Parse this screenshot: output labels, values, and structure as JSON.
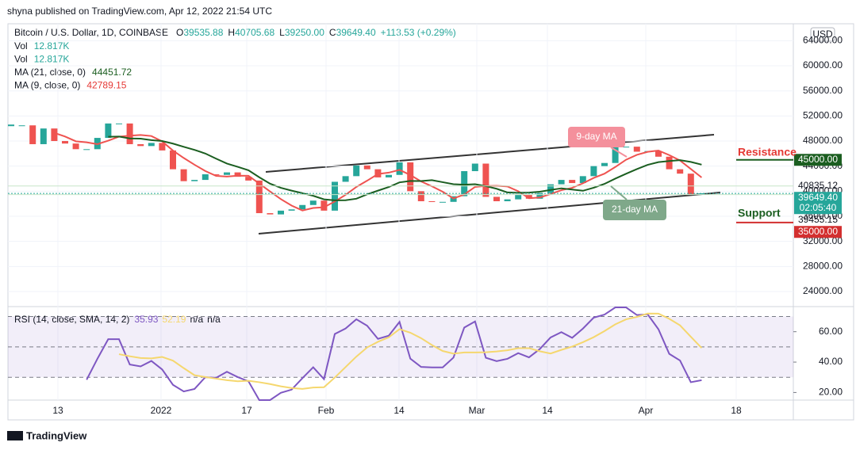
{
  "header": {
    "published": "shyna published on TradingView.com, Apr 12, 2022 21:54 UTC",
    "footer": "TradingView"
  },
  "chart_data": {
    "type": "candlestick",
    "title": "Bitcoin / U.S. Dollar, 1D, COINBASE",
    "ohlc": [
      {
        "key": "O",
        "text": "39535.88"
      },
      {
        "key": "H",
        "text": "40705.68"
      },
      {
        "key": "L",
        "text": "39250.00"
      },
      {
        "key": "C",
        "text": "39649.40"
      },
      {
        "key": "",
        "text": "+113.53 (+0.29%)"
      }
    ],
    "indicators": [
      {
        "key": "Vol",
        "text": "12.817K"
      },
      {
        "key": "Vol",
        "text": "12.817K"
      },
      {
        "key": "MA (21, close, 0)",
        "text": "44451.72"
      },
      {
        "key": "MA (9, close, 0)",
        "text": "42789.15"
      }
    ],
    "currency": "USD",
    "values": [
      50500,
      50500,
      47500,
      50000,
      48000,
      47600,
      46700,
      46700,
      48500,
      50800,
      50800,
      47500,
      47200,
      47700,
      46500,
      43500,
      41600,
      41800,
      42700,
      42600,
      43000,
      42300,
      41700,
      36500,
      36300,
      36900,
      37100,
      37800,
      38500,
      36900,
      41500,
      42400,
      44100,
      43500,
      42200,
      42600,
      44600,
      40000,
      38400,
      38300,
      38300,
      39200,
      43200,
      44400,
      39100,
      38400,
      38700,
      39400,
      38800,
      39700,
      41100,
      41800,
      41300,
      42400,
      44000,
      44500,
      47100,
      47100,
      46300,
      46400,
      45500,
      43500,
      42800,
      39500,
      39649.4
    ],
    "ylim": [
      21850,
      66700
    ],
    "yticks": [
      {
        "value": 24000,
        "label": "24000.00"
      },
      {
        "value": 28000,
        "label": "28000.00"
      },
      {
        "value": 32000,
        "label": "32000.00"
      },
      {
        "value": 36000,
        "label": "36000.00"
      },
      {
        "value": 40000,
        "label": "40000.00"
      },
      {
        "value": 44000,
        "label": "44000.00"
      },
      {
        "value": 48000,
        "label": "48000.00"
      },
      {
        "value": 52000,
        "label": "52000.00"
      },
      {
        "value": 56000,
        "label": "56000.00"
      },
      {
        "value": 60000,
        "label": "60000.00"
      },
      {
        "value": 64000,
        "label": "64000.00"
      }
    ],
    "price_labels": [
      {
        "value": 45000,
        "label": "45000.00",
        "color": "#1b5e20"
      },
      {
        "value": 40835.12,
        "label": "40835.12",
        "color": null
      },
      {
        "value": 39649.4,
        "label": "39649.40",
        "color": "#26a69a",
        "countdown": "02:05:40"
      },
      {
        "value": 39455.15,
        "label": "39455.15",
        "color": null
      },
      {
        "value": 35000,
        "label": "35000.00",
        "color": "#d32f2f"
      }
    ],
    "xticks": [
      "13",
      "2022",
      "17",
      "Feb",
      "14",
      "Mar",
      "14",
      "Apr",
      "18"
    ],
    "annotations": {
      "ma9": "9-day MA",
      "ma21": "21-day MA",
      "resistance": "Resistance",
      "support": "Support"
    },
    "up_color": "#26a69a",
    "down_color": "#ef5350",
    "rsi": {
      "legend": "RSI (14, close, SMA, 14, 2)",
      "values_text": [
        "35.93",
        "52.19",
        "n/a",
        "n/a"
      ],
      "ylim": [
        15,
        76
      ],
      "yticks": [
        {
          "value": 20,
          "label": "20.00"
        },
        {
          "value": 40,
          "label": "40.00"
        },
        {
          "value": 60,
          "label": "60.00"
        }
      ]
    }
  }
}
